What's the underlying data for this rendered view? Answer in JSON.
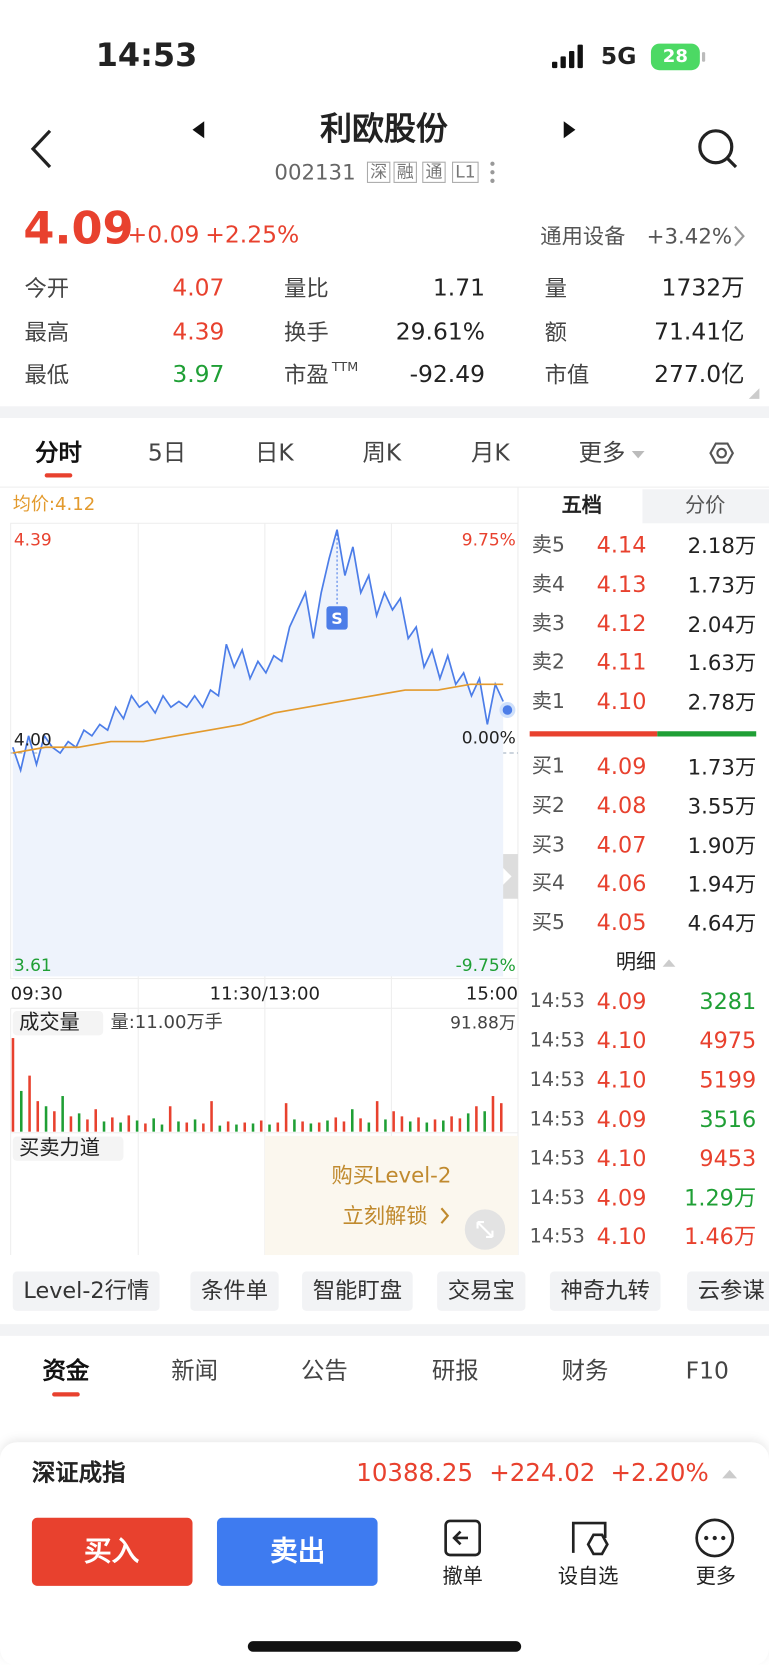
{
  "status": {
    "time": "14:53",
    "network": "5G",
    "battery": "28"
  },
  "header": {
    "title": "利欧股份",
    "code": "002131",
    "tags": [
      "深",
      "融",
      "通",
      "L1"
    ]
  },
  "quote": {
    "price": "4.09",
    "change": "+0.09",
    "change_pct": "+2.25%",
    "sector": "通用设备",
    "sector_change": "+3.42%"
  },
  "stats": [
    {
      "label": "今开",
      "value": "4.07",
      "color": "#e8412e"
    },
    {
      "label": "最高",
      "value": "4.39",
      "color": "#e8412e"
    },
    {
      "label": "最低",
      "value": "3.97",
      "color": "#1f9f35"
    },
    {
      "label": "量比",
      "value": "1.71",
      "color": "#222222"
    },
    {
      "label": "换手",
      "value": "29.61%",
      "color": "#222222"
    },
    {
      "label": "市盈",
      "sup": "TTM",
      "value": "-92.49",
      "color": "#222222"
    },
    {
      "label": "量",
      "value": "1732万",
      "color": "#222222"
    },
    {
      "label": "额",
      "value": "71.41亿",
      "color": "#222222"
    },
    {
      "label": "市值",
      "value": "277.0亿",
      "color": "#222222"
    }
  ],
  "tabs": {
    "items": [
      "分时",
      "5日",
      "日K",
      "周K",
      "月K",
      "更多"
    ],
    "active": 0
  },
  "intraday": {
    "avg_label": "均价:4.12",
    "ylim": [
      3.61,
      4.39
    ],
    "yticks": [
      4.39,
      {
        "value": 4.0,
        "label": "4.00"
      },
      3.61
    ],
    "pct_labels": [
      "9.75%",
      "0.00%",
      "-9.75%"
    ],
    "xticks": [
      "09:30",
      "11:30/13:00",
      "15:00"
    ],
    "price": [
      4.01,
      3.97,
      4.03,
      3.98,
      4.03,
      4.01,
      4.0,
      4.02,
      4.01,
      4.04,
      4.03,
      4.05,
      4.04,
      4.08,
      4.06,
      4.1,
      4.08,
      4.09,
      4.07,
      4.1,
      4.08,
      4.09,
      4.08,
      4.1,
      4.08,
      4.11,
      4.1,
      4.19,
      4.15,
      4.18,
      4.13,
      4.16,
      4.14,
      4.17,
      4.16,
      4.22,
      4.25,
      4.28,
      4.2,
      4.28,
      4.34,
      4.39,
      4.31,
      4.36,
      4.28,
      4.31,
      4.24,
      4.28,
      4.25,
      4.27,
      4.2,
      4.22,
      4.15,
      4.18,
      4.13,
      4.17,
      4.12,
      4.14,
      4.1,
      4.13,
      4.05,
      4.12,
      4.09
    ],
    "price_color": "#4c7de8",
    "avg": [
      4.0,
      4.01,
      4.01,
      4.02,
      4.02,
      4.03,
      4.04,
      4.05,
      4.07,
      4.08,
      4.09,
      4.1,
      4.11,
      4.11,
      4.12,
      4.12
    ],
    "avg_color": "#e39a2d",
    "marker": "S",
    "volume_label": "成交量",
    "volume_info": "量:11.00万手",
    "volume_max": {
      "value": 91.88,
      "label": "91.88万"
    },
    "volumes": [
      91.88,
      40,
      55,
      30,
      25,
      20,
      35,
      15,
      18,
      12,
      22,
      10,
      14,
      9,
      16,
      11,
      8,
      13,
      7,
      25,
      10,
      9,
      12,
      8,
      30,
      6,
      10,
      7,
      9,
      8,
      11,
      7,
      9,
      28,
      12,
      10,
      8,
      9,
      11,
      14,
      10,
      22,
      13,
      9,
      30,
      12,
      20,
      15,
      10,
      14,
      9,
      12,
      11,
      15,
      13,
      18,
      25,
      20,
      35,
      28
    ],
    "volume_up": [
      true,
      false,
      true,
      true,
      false,
      true,
      false,
      true,
      false,
      true,
      true,
      false,
      true,
      false,
      true,
      false,
      true,
      false,
      false,
      true,
      false,
      true,
      false,
      true,
      true,
      false,
      true,
      false,
      true,
      false,
      true,
      false,
      true,
      true,
      false,
      true,
      false,
      true,
      false,
      true,
      true,
      false,
      true,
      false,
      true,
      false,
      true,
      true,
      false,
      true,
      false,
      true,
      false,
      true,
      true,
      false,
      true,
      false,
      true,
      true
    ],
    "strength_label": "买卖力道",
    "level2": [
      "购买Level-2",
      "立刻解锁"
    ]
  },
  "order_book": {
    "tabs": [
      "五档",
      "分价"
    ],
    "sells": [
      [
        "卖5",
        "4.14",
        "2.18万"
      ],
      [
        "卖4",
        "4.13",
        "1.73万"
      ],
      [
        "卖3",
        "4.12",
        "2.04万"
      ],
      [
        "卖2",
        "4.11",
        "1.63万"
      ],
      [
        "卖1",
        "4.10",
        "2.78万"
      ]
    ],
    "buys": [
      [
        "买1",
        "4.09",
        "1.73万"
      ],
      [
        "买2",
        "4.08",
        "3.55万"
      ],
      [
        "买3",
        "4.07",
        "1.90万"
      ],
      [
        "买4",
        "4.06",
        "1.94万"
      ],
      [
        "买5",
        "4.05",
        "4.64万"
      ]
    ],
    "detail_title": "明细",
    "details": [
      {
        "time": "14:53",
        "price": "4.09",
        "volume": "3281",
        "color": "#1f9f35"
      },
      {
        "time": "14:53",
        "price": "4.10",
        "volume": "4975",
        "color": "#e8412e"
      },
      {
        "time": "14:53",
        "price": "4.10",
        "volume": "5199",
        "color": "#e8412e"
      },
      {
        "time": "14:53",
        "price": "4.09",
        "volume": "3516",
        "color": "#1f9f35"
      },
      {
        "time": "14:53",
        "price": "4.10",
        "volume": "9453",
        "color": "#e8412e"
      },
      {
        "time": "14:53",
        "price": "4.09",
        "volume": "1.29万",
        "color": "#1f9f35"
      },
      {
        "time": "14:53",
        "price": "4.10",
        "volume": "1.46万",
        "color": "#e8412e"
      }
    ]
  },
  "chips": [
    "Level-2行情",
    "条件单",
    "智能盯盘",
    "交易宝",
    "神奇九转",
    "云参谋"
  ],
  "bottom_tabs": {
    "items": [
      "资金",
      "新闻",
      "公告",
      "研报",
      "财务",
      "F10"
    ],
    "active": 0
  },
  "index": {
    "name": "深证成指",
    "value": "10388.25",
    "change": "+224.02",
    "change_pct": "+2.20%"
  },
  "actions": {
    "buy": "买入",
    "sell": "卖出",
    "tools": [
      "撤单",
      "设自选",
      "更多"
    ]
  }
}
